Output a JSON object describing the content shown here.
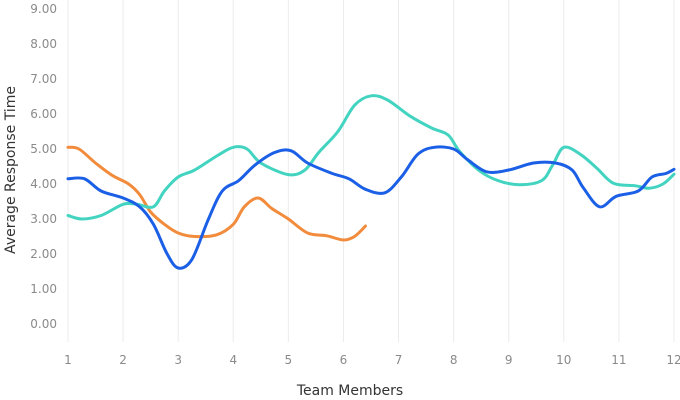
{
  "chart_data": {
    "type": "line",
    "title": "",
    "xlabel": "Team Members",
    "ylabel": "Average Response Time",
    "x_ticks": [
      "1",
      "2",
      "3",
      "4",
      "5",
      "6",
      "7",
      "8",
      "9",
      "10",
      "11",
      "12"
    ],
    "y_ticks": [
      "0.00",
      "1.00",
      "2.00",
      "3.00",
      "4.00",
      "5.00",
      "6.00",
      "7.00",
      "8.00",
      "9.00"
    ],
    "xlim": [
      1,
      12
    ],
    "ylim": [
      0,
      9
    ],
    "grid": "vertical",
    "legend": "none",
    "series": [
      {
        "color": "#f28c3c",
        "points": [
          [
            1,
            5.05
          ],
          [
            1.2,
            5.0
          ],
          [
            1.5,
            4.6
          ],
          [
            1.8,
            4.25
          ],
          [
            2.1,
            4.0
          ],
          [
            2.3,
            3.7
          ],
          [
            2.5,
            3.2
          ],
          [
            2.75,
            2.85
          ],
          [
            3,
            2.6
          ],
          [
            3.3,
            2.5
          ],
          [
            3.7,
            2.55
          ],
          [
            4,
            2.85
          ],
          [
            4.2,
            3.35
          ],
          [
            4.45,
            3.6
          ],
          [
            4.7,
            3.3
          ],
          [
            5,
            3.0
          ],
          [
            5.35,
            2.6
          ],
          [
            5.7,
            2.52
          ],
          [
            6,
            2.4
          ],
          [
            6.2,
            2.5
          ],
          [
            6.4,
            2.8
          ]
        ]
      },
      {
        "color": "#42d4c0",
        "points": [
          [
            1,
            3.1
          ],
          [
            1.25,
            3.0
          ],
          [
            1.6,
            3.1
          ],
          [
            2,
            3.42
          ],
          [
            2.25,
            3.42
          ],
          [
            2.55,
            3.35
          ],
          [
            2.75,
            3.8
          ],
          [
            3,
            4.2
          ],
          [
            3.3,
            4.4
          ],
          [
            3.7,
            4.8
          ],
          [
            4,
            5.05
          ],
          [
            4.25,
            5.0
          ],
          [
            4.5,
            4.6
          ],
          [
            5,
            4.27
          ],
          [
            5.3,
            4.4
          ],
          [
            5.55,
            4.9
          ],
          [
            5.9,
            5.5
          ],
          [
            6.2,
            6.25
          ],
          [
            6.5,
            6.52
          ],
          [
            6.8,
            6.4
          ],
          [
            7.2,
            5.95
          ],
          [
            7.6,
            5.6
          ],
          [
            7.9,
            5.4
          ],
          [
            8.1,
            4.95
          ],
          [
            8.45,
            4.4
          ],
          [
            8.8,
            4.1
          ],
          [
            9.2,
            3.98
          ],
          [
            9.6,
            4.1
          ],
          [
            9.8,
            4.55
          ],
          [
            10,
            5.05
          ],
          [
            10.3,
            4.85
          ],
          [
            10.6,
            4.45
          ],
          [
            10.9,
            4.02
          ],
          [
            11.3,
            3.95
          ],
          [
            11.55,
            3.88
          ],
          [
            11.8,
            4.0
          ],
          [
            12,
            4.28
          ]
        ]
      },
      {
        "color": "#1a5fe6",
        "points": [
          [
            1,
            4.15
          ],
          [
            1.3,
            4.15
          ],
          [
            1.6,
            3.8
          ],
          [
            2,
            3.6
          ],
          [
            2.3,
            3.35
          ],
          [
            2.55,
            2.85
          ],
          [
            2.8,
            2.0
          ],
          [
            3,
            1.6
          ],
          [
            3.25,
            1.85
          ],
          [
            3.55,
            3.0
          ],
          [
            3.8,
            3.8
          ],
          [
            4.1,
            4.1
          ],
          [
            4.4,
            4.55
          ],
          [
            4.75,
            4.9
          ],
          [
            5.05,
            4.95
          ],
          [
            5.35,
            4.6
          ],
          [
            5.8,
            4.3
          ],
          [
            6.1,
            4.15
          ],
          [
            6.4,
            3.85
          ],
          [
            6.75,
            3.75
          ],
          [
            7.05,
            4.2
          ],
          [
            7.35,
            4.85
          ],
          [
            7.65,
            5.05
          ],
          [
            8,
            5.0
          ],
          [
            8.25,
            4.7
          ],
          [
            8.6,
            4.35
          ],
          [
            9,
            4.4
          ],
          [
            9.45,
            4.6
          ],
          [
            9.85,
            4.6
          ],
          [
            10.15,
            4.4
          ],
          [
            10.35,
            3.9
          ],
          [
            10.65,
            3.35
          ],
          [
            10.95,
            3.65
          ],
          [
            11.35,
            3.8
          ],
          [
            11.6,
            4.2
          ],
          [
            11.85,
            4.3
          ],
          [
            12,
            4.42
          ]
        ]
      }
    ]
  }
}
